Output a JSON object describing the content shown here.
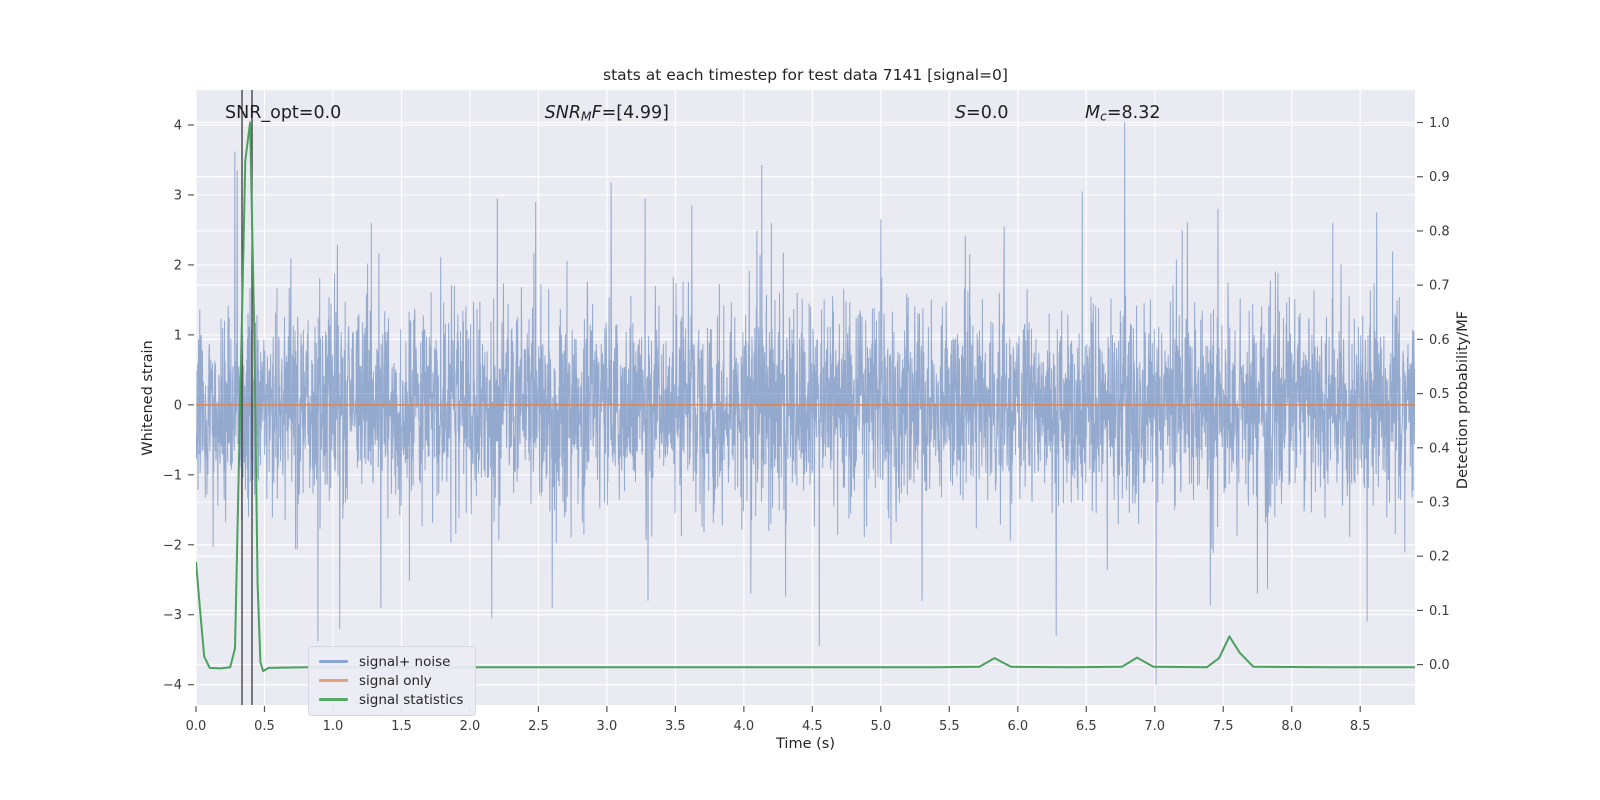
{
  "chart_data": {
    "type": "line",
    "title": "stats at each timestep for test data 7141 [signal=0]",
    "xlabel": "Time (s)",
    "ylabel_left": "Whitened strain",
    "ylabel_right": "Detection probability/MF",
    "xlim": [
      0,
      8.9
    ],
    "ylim_left": [
      -4.29,
      4.5
    ],
    "ylim_right": [
      -0.0745,
      1.06
    ],
    "xticks": [
      0.0,
      0.5,
      1.0,
      1.5,
      2.0,
      2.5,
      3.0,
      3.5,
      4.0,
      4.5,
      5.0,
      5.5,
      6.0,
      6.5,
      7.0,
      7.5,
      8.0,
      8.5
    ],
    "yticks_left": [
      -4,
      -3,
      -2,
      -1,
      0,
      1,
      2,
      3,
      4
    ],
    "yticks_right": [
      0.0,
      0.1,
      0.2,
      0.3,
      0.4,
      0.5,
      0.6,
      0.7,
      0.8,
      0.9,
      1.0
    ],
    "grid": "white gridlines from both y-axes and x-axis, on light-lavender axes background",
    "legend_position": "lower left",
    "colors": {
      "axes_bg": "#eaeaf2",
      "grid": "#ffffff",
      "tick": "#555555",
      "tick_label": "#3a3a3a",
      "vline": "#3a3a3a",
      "noise_line": "rgba(76,114,176,0.55)",
      "signal_line": "rgba(221,132,82,0.9)",
      "stats_line": "#4ba05f"
    },
    "vlines": {
      "times": [
        0.336,
        0.409
      ]
    },
    "annotations": [
      {
        "id": "snr-opt",
        "x_frac": 0.0238,
        "parts": [
          {
            "t": "SNR_opt=0.0",
            "i": false
          }
        ]
      },
      {
        "id": "snr-mf",
        "x_frac": 0.286,
        "parts": [
          {
            "t": "SNR",
            "i": true
          },
          {
            "t": "M",
            "i": true,
            "sub": true
          },
          {
            "t": "F",
            "i": true
          },
          {
            "t": "=[4.99]",
            "i": false
          }
        ]
      },
      {
        "id": "s-stat",
        "x_frac": 0.6226,
        "parts": [
          {
            "t": "S",
            "i": true
          },
          {
            "t": "=0.0",
            "i": false
          }
        ]
      },
      {
        "id": "m-chirp",
        "x_frac": 0.7293,
        "parts": [
          {
            "t": "M",
            "i": true
          },
          {
            "t": "c",
            "i": true,
            "sub": true
          },
          {
            "t": "=8.32",
            "i": false
          }
        ]
      }
    ],
    "series": [
      {
        "name": "signal+ noise",
        "axis": "left",
        "kind": "noise",
        "color": "rgba(76,114,176,0.55)",
        "noise": {
          "seed": 1337,
          "n": 4200,
          "sigma": 0.72,
          "heavy_tail_prob": 0.012,
          "heavy_tail_scale": [
            1.6,
            2.6
          ],
          "feature_spikes": [
            [
              0.285,
              3.62
            ],
            [
              0.302,
              3.35
            ],
            [
              1.28,
              2.6
            ],
            [
              2.2,
              2.95
            ],
            [
              2.48,
              2.9
            ],
            [
              3.03,
              3.18
            ],
            [
              3.28,
              2.95
            ],
            [
              3.62,
              2.85
            ],
            [
              4.2,
              2.6
            ],
            [
              5.0,
              2.65
            ],
            [
              5.9,
              2.55
            ],
            [
              6.47,
              3.05
            ],
            [
              6.78,
              4.05
            ],
            [
              7.2,
              2.5
            ],
            [
              7.46,
              2.8
            ],
            [
              8.3,
              2.6
            ],
            [
              8.62,
              2.75
            ],
            [
              0.89,
              -3.38
            ],
            [
              1.05,
              -3.2
            ],
            [
              1.35,
              -2.9
            ],
            [
              2.16,
              -3.05
            ],
            [
              2.6,
              -2.9
            ],
            [
              3.3,
              -2.8
            ],
            [
              4.05,
              -2.7
            ],
            [
              4.55,
              -3.45
            ],
            [
              5.3,
              -2.8
            ],
            [
              6.28,
              -3.3
            ],
            [
              7.01,
              -4.0
            ],
            [
              7.75,
              -2.7
            ],
            [
              8.55,
              -3.1
            ]
          ]
        }
      },
      {
        "name": "signal only",
        "axis": "left",
        "kind": "constant",
        "value": 0,
        "color": "rgba(221,132,82,0.9)"
      },
      {
        "name": "signal statistics",
        "axis": "right",
        "kind": "points",
        "color": "#4ba05f",
        "points": [
          [
            0.0,
            0.19
          ],
          [
            0.03,
            0.1
          ],
          [
            0.06,
            0.015
          ],
          [
            0.1,
            -0.006
          ],
          [
            0.18,
            -0.007
          ],
          [
            0.25,
            -0.005
          ],
          [
            0.285,
            0.03
          ],
          [
            0.32,
            0.45
          ],
          [
            0.36,
            0.93
          ],
          [
            0.395,
            1.0
          ],
          [
            0.425,
            0.62
          ],
          [
            0.45,
            0.15
          ],
          [
            0.47,
            0.005
          ],
          [
            0.49,
            -0.012
          ],
          [
            0.53,
            -0.006
          ],
          [
            0.8,
            -0.005
          ],
          [
            1.5,
            -0.005
          ],
          [
            2.5,
            -0.005
          ],
          [
            3.5,
            -0.005
          ],
          [
            4.5,
            -0.005
          ],
          [
            5.4,
            -0.005
          ],
          [
            5.72,
            -0.004
          ],
          [
            5.83,
            0.012
          ],
          [
            5.95,
            -0.004
          ],
          [
            6.4,
            -0.005
          ],
          [
            6.76,
            -0.004
          ],
          [
            6.87,
            0.013
          ],
          [
            6.99,
            -0.004
          ],
          [
            7.38,
            -0.005
          ],
          [
            7.47,
            0.012
          ],
          [
            7.545,
            0.052
          ],
          [
            7.62,
            0.022
          ],
          [
            7.72,
            -0.004
          ],
          [
            8.3,
            -0.005
          ],
          [
            8.9,
            -0.005
          ]
        ]
      }
    ],
    "legend": {
      "entries": [
        {
          "label": "signal+ noise",
          "color": "#8aa5cf"
        },
        {
          "label": "signal only",
          "color": "#e2a07d"
        },
        {
          "label": "signal statistics",
          "color": "#55a868"
        }
      ]
    }
  }
}
